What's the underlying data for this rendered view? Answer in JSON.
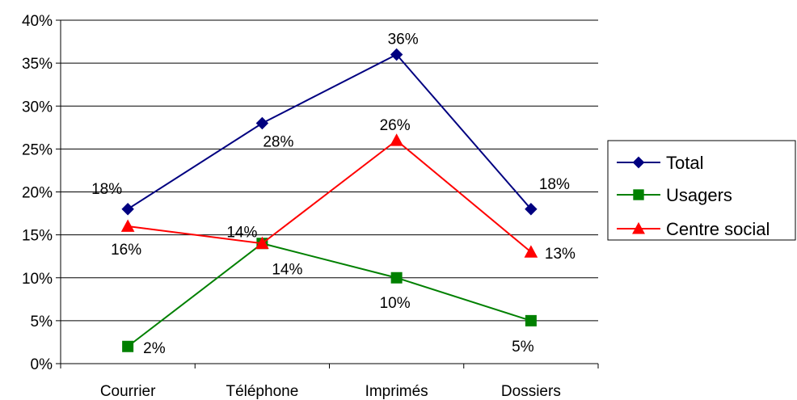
{
  "chart_data": {
    "type": "line",
    "categories": [
      "Courrier",
      "Téléphone",
      "Imprimés",
      "Dossiers"
    ],
    "ylim": [
      0,
      40
    ],
    "yticks": [
      "0%",
      "5%",
      "10%",
      "15%",
      "20%",
      "25%",
      "30%",
      "35%",
      "40%"
    ],
    "grid": true,
    "legend_position": "right",
    "series": [
      {
        "name": "Total",
        "color": "#000080",
        "marker": "diamond",
        "values": [
          18,
          28,
          36,
          18
        ],
        "labels": [
          "18%",
          "28%",
          "36%",
          "18%"
        ]
      },
      {
        "name": "Usagers",
        "color": "#008000",
        "marker": "square",
        "values": [
          2,
          14,
          10,
          5
        ],
        "labels": [
          "2%",
          "14%",
          "10%",
          "5%"
        ]
      },
      {
        "name": "Centre social",
        "color": "#ff0000",
        "marker": "triangle",
        "values": [
          16,
          14,
          26,
          13
        ],
        "labels": [
          "16%",
          "14%",
          "26%",
          "13%"
        ]
      }
    ]
  }
}
